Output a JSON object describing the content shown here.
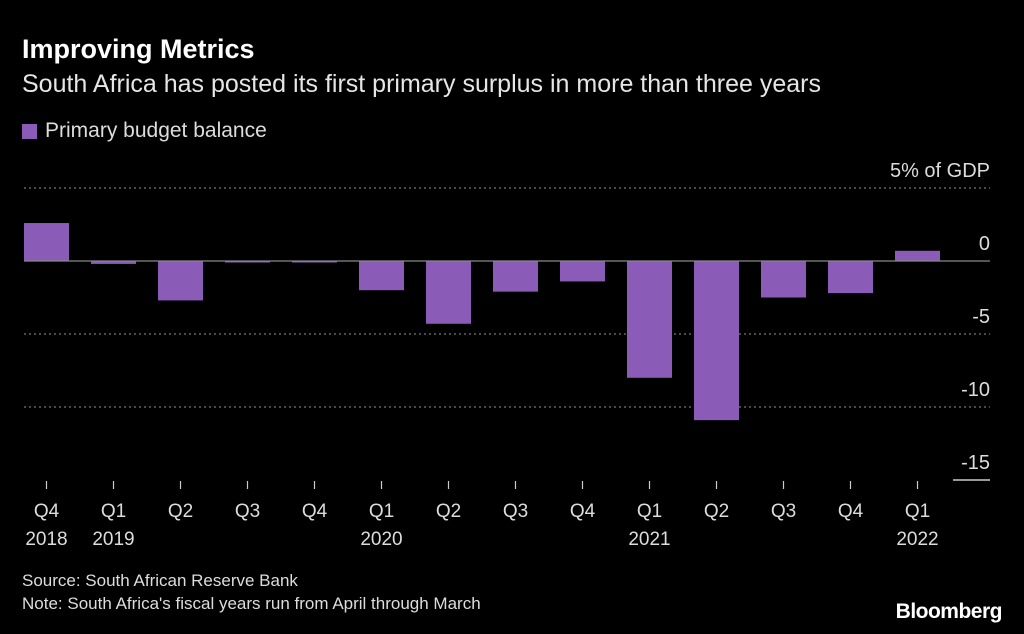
{
  "header": {
    "title": "Improving Metrics",
    "subtitle": "South Africa has posted its first primary surplus in more than three years"
  },
  "footer": {
    "source": "Source: South African Reserve Bank",
    "note": "Note: South Africa's fiscal years run from April through March",
    "logo": "Bloomberg"
  },
  "chart_data": {
    "type": "bar",
    "title": "Improving Metrics",
    "subtitle": "South Africa has posted its first primary surplus in more than three years",
    "categories": [
      "Q4 2018",
      "Q1 2019",
      "Q2 2019",
      "Q3 2019",
      "Q4 2019",
      "Q1 2020",
      "Q2 2020",
      "Q3 2020",
      "Q4 2020",
      "Q1 2021",
      "Q2 2021",
      "Q3 2021",
      "Q4 2021",
      "Q1 2022"
    ],
    "tick_labels": [
      {
        "quarter": "Q4",
        "year": "2018"
      },
      {
        "quarter": "Q1",
        "year": "2019"
      },
      {
        "quarter": "Q2",
        "year": ""
      },
      {
        "quarter": "Q3",
        "year": ""
      },
      {
        "quarter": "Q4",
        "year": ""
      },
      {
        "quarter": "Q1",
        "year": "2020"
      },
      {
        "quarter": "Q2",
        "year": ""
      },
      {
        "quarter": "Q3",
        "year": ""
      },
      {
        "quarter": "Q4",
        "year": ""
      },
      {
        "quarter": "Q1",
        "year": "2021"
      },
      {
        "quarter": "Q2",
        "year": ""
      },
      {
        "quarter": "Q3",
        "year": ""
      },
      {
        "quarter": "Q4",
        "year": ""
      },
      {
        "quarter": "Q1",
        "year": "2022"
      }
    ],
    "series": [
      {
        "name": "Primary budget balance",
        "color": "#8a5cb8",
        "values": [
          2.6,
          -0.2,
          -2.7,
          -0.1,
          -0.1,
          -2.0,
          -4.3,
          -2.1,
          -1.4,
          -8.0,
          -10.9,
          -2.5,
          -2.2,
          0.7
        ]
      }
    ],
    "ylabel": "",
    "y_unit_label": "5% of GDP",
    "y_ticks": [
      5,
      0,
      -5,
      -10,
      -15
    ],
    "y_tick_labels": [
      "5% of GDP",
      "0",
      "-5",
      "-10",
      "-15"
    ],
    "ylim": [
      -15,
      5
    ],
    "y_axis_position": "right",
    "grid": true,
    "legend_position": "top-left",
    "background": "#000000"
  }
}
